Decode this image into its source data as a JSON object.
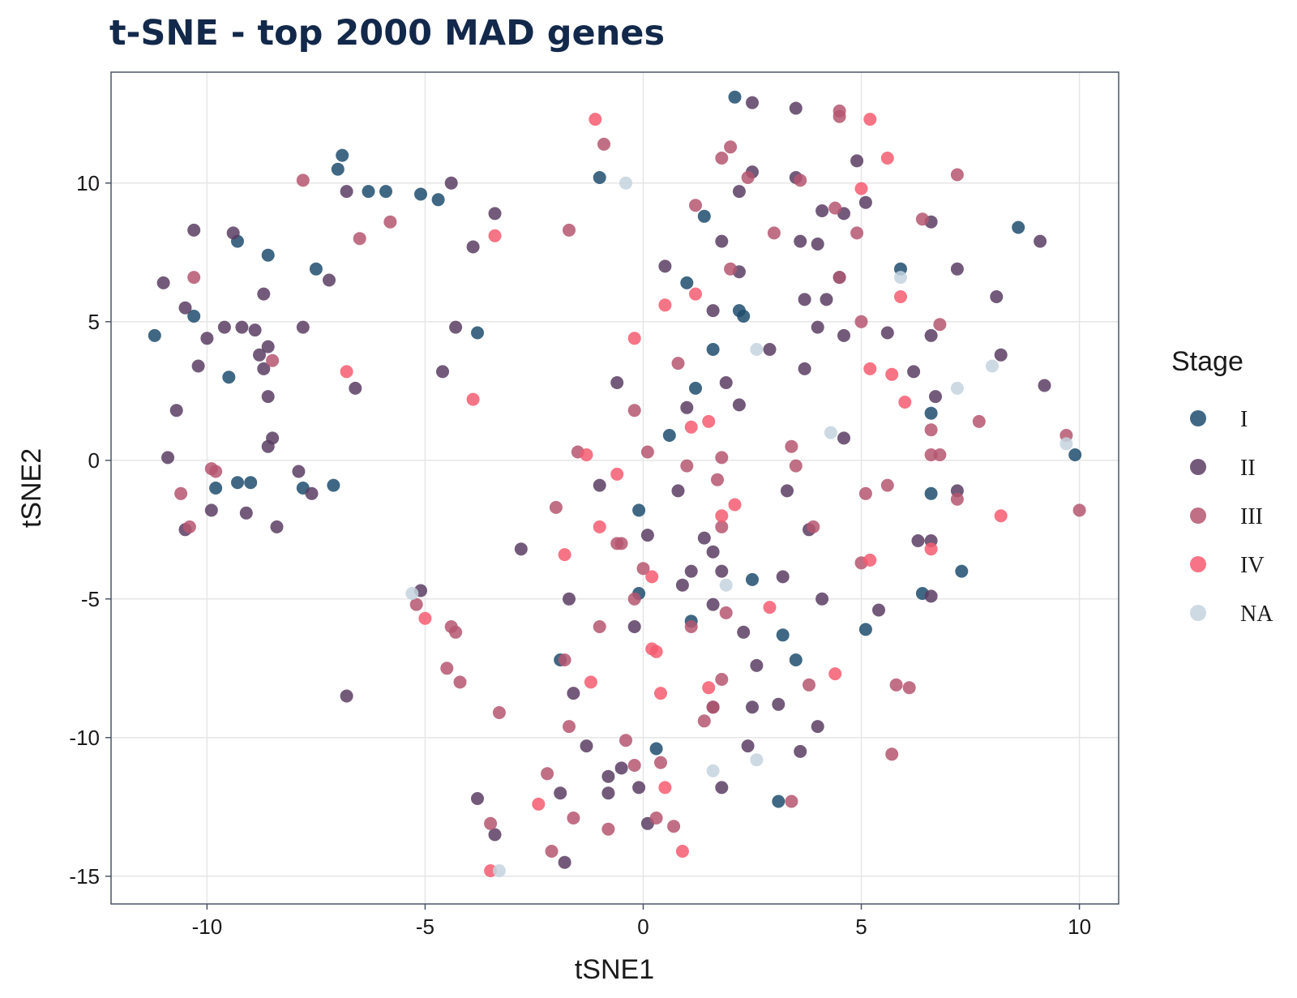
{
  "chart_data": {
    "type": "scatter",
    "title": "t-SNE - top 2000 MAD genes",
    "xlabel": "tSNE1",
    "ylabel": "tSNE2",
    "xlim": [
      -12.2,
      10.9
    ],
    "ylim": [
      -16.0,
      14.0
    ],
    "x_ticks": [
      -10,
      -5,
      0,
      5,
      10
    ],
    "y_ticks": [
      10,
      5,
      0,
      -5,
      -10,
      -15
    ],
    "grid": true,
    "legend": {
      "title": "Stage",
      "position": "right"
    },
    "colors": {
      "I": "#1f4e6e",
      "II": "#5a3d63",
      "III": "#b55670",
      "IV": "#f45c70",
      "NA": "#c4d3df"
    },
    "series": [
      {
        "name": "I",
        "points": [
          [
            -11.2,
            4.5
          ],
          [
            -10.3,
            5.2
          ],
          [
            -9.5,
            3.0
          ],
          [
            -9.3,
            7.9
          ],
          [
            -8.6,
            7.4
          ],
          [
            -7.5,
            6.9
          ],
          [
            -7.0,
            10.5
          ],
          [
            -6.9,
            11.0
          ],
          [
            -6.3,
            9.7
          ],
          [
            -5.9,
            9.7
          ],
          [
            -5.1,
            9.6
          ],
          [
            -4.7,
            9.4
          ],
          [
            -3.8,
            4.6
          ],
          [
            -9.8,
            -1.0
          ],
          [
            -9.3,
            -0.8
          ],
          [
            -9.0,
            -0.8
          ],
          [
            -7.8,
            -1.0
          ],
          [
            -7.1,
            -0.9
          ],
          [
            -1.0,
            10.2
          ],
          [
            1.4,
            8.8
          ],
          [
            2.1,
            13.1
          ],
          [
            1.0,
            6.4
          ],
          [
            2.2,
            5.4
          ],
          [
            2.3,
            5.2
          ],
          [
            1.6,
            4.0
          ],
          [
            1.2,
            2.6
          ],
          [
            0.6,
            0.9
          ],
          [
            -0.1,
            -1.8
          ],
          [
            -0.1,
            -4.8
          ],
          [
            1.1,
            -5.8
          ],
          [
            2.5,
            -4.3
          ],
          [
            3.2,
            -6.3
          ],
          [
            3.5,
            -7.2
          ],
          [
            -1.9,
            -7.2
          ],
          [
            0.3,
            -10.4
          ],
          [
            3.1,
            -12.3
          ],
          [
            4.5,
            6.6
          ],
          [
            5.9,
            6.9
          ],
          [
            6.6,
            1.7
          ],
          [
            6.6,
            -1.2
          ],
          [
            6.4,
            -4.8
          ],
          [
            5.1,
            -6.1
          ],
          [
            7.3,
            -4.0
          ],
          [
            8.6,
            8.4
          ],
          [
            9.9,
            0.2
          ]
        ]
      },
      {
        "name": "II",
        "points": [
          [
            -11.0,
            6.4
          ],
          [
            -10.5,
            5.5
          ],
          [
            -10.3,
            8.3
          ],
          [
            -10.0,
            4.4
          ],
          [
            -10.2,
            3.4
          ],
          [
            -10.7,
            1.8
          ],
          [
            -10.9,
            0.1
          ],
          [
            -9.4,
            8.2
          ],
          [
            -9.6,
            4.8
          ],
          [
            -9.2,
            4.8
          ],
          [
            -8.9,
            4.7
          ],
          [
            -8.8,
            3.8
          ],
          [
            -8.7,
            6.0
          ],
          [
            -8.6,
            4.1
          ],
          [
            -8.7,
            3.3
          ],
          [
            -8.6,
            2.3
          ],
          [
            -8.5,
            0.8
          ],
          [
            -8.6,
            0.5
          ],
          [
            -9.9,
            -1.8
          ],
          [
            -9.1,
            -1.9
          ],
          [
            -8.4,
            -2.4
          ],
          [
            -10.5,
            -2.5
          ],
          [
            -7.9,
            -0.4
          ],
          [
            -7.6,
            -1.2
          ],
          [
            -7.8,
            4.8
          ],
          [
            -7.2,
            6.5
          ],
          [
            -6.8,
            9.7
          ],
          [
            -6.6,
            2.6
          ],
          [
            -4.4,
            10.0
          ],
          [
            -3.4,
            8.9
          ],
          [
            -3.9,
            7.7
          ],
          [
            -4.3,
            4.8
          ],
          [
            -4.6,
            3.2
          ],
          [
            -6.8,
            -8.5
          ],
          [
            -5.1,
            -4.7
          ],
          [
            -2.8,
            -3.2
          ],
          [
            -1.7,
            -5.0
          ],
          [
            -1.6,
            -8.4
          ],
          [
            -1.3,
            -10.3
          ],
          [
            -0.8,
            -11.4
          ],
          [
            -0.5,
            -11.1
          ],
          [
            -0.8,
            -12.0
          ],
          [
            -0.1,
            -11.8
          ],
          [
            0.1,
            -13.1
          ],
          [
            -1.9,
            -12.0
          ],
          [
            -3.8,
            -12.2
          ],
          [
            -3.4,
            -13.5
          ],
          [
            -1.8,
            -14.5
          ],
          [
            -0.6,
            2.8
          ],
          [
            1.0,
            1.9
          ],
          [
            0.1,
            -2.7
          ],
          [
            0.5,
            7.0
          ],
          [
            -0.2,
            -6.0
          ],
          [
            0.9,
            -4.5
          ],
          [
            1.1,
            -4.0
          ],
          [
            1.4,
            -2.8
          ],
          [
            1.6,
            -3.3
          ],
          [
            1.6,
            -5.2
          ],
          [
            1.8,
            -4.0
          ],
          [
            1.8,
            -11.8
          ],
          [
            1.6,
            -8.9
          ],
          [
            1.9,
            2.8
          ],
          [
            2.2,
            2.0
          ],
          [
            2.2,
            6.8
          ],
          [
            1.8,
            7.9
          ],
          [
            1.6,
            5.4
          ],
          [
            2.2,
            9.7
          ],
          [
            2.5,
            10.4
          ],
          [
            2.5,
            12.9
          ],
          [
            2.3,
            -6.2
          ],
          [
            2.4,
            -10.3
          ],
          [
            2.5,
            -8.9
          ],
          [
            2.6,
            -7.4
          ],
          [
            3.2,
            -4.2
          ],
          [
            3.1,
            -8.8
          ],
          [
            3.3,
            -1.1
          ],
          [
            2.9,
            4.0
          ],
          [
            3.5,
            10.2
          ],
          [
            3.6,
            7.9
          ],
          [
            3.7,
            5.8
          ],
          [
            3.7,
            3.3
          ],
          [
            3.5,
            12.7
          ],
          [
            3.8,
            -2.5
          ],
          [
            4.0,
            -9.6
          ],
          [
            4.0,
            4.8
          ],
          [
            4.0,
            7.8
          ],
          [
            4.1,
            9.0
          ],
          [
            4.2,
            5.8
          ],
          [
            4.1,
            -5.0
          ],
          [
            3.6,
            -10.5
          ],
          [
            4.6,
            4.5
          ],
          [
            4.6,
            8.9
          ],
          [
            4.9,
            10.8
          ],
          [
            5.1,
            9.3
          ],
          [
            5.4,
            -5.4
          ],
          [
            5.6,
            4.6
          ],
          [
            6.2,
            3.2
          ],
          [
            6.3,
            -2.9
          ],
          [
            6.6,
            -2.9
          ],
          [
            6.6,
            -4.9
          ],
          [
            6.6,
            4.5
          ],
          [
            6.7,
            2.3
          ],
          [
            6.6,
            8.6
          ],
          [
            7.2,
            6.9
          ],
          [
            7.2,
            -1.1
          ],
          [
            8.1,
            5.9
          ],
          [
            8.2,
            3.8
          ],
          [
            9.1,
            7.9
          ],
          [
            9.2,
            2.7
          ],
          [
            4.6,
            0.8
          ],
          [
            0.8,
            -1.1
          ],
          [
            -1.0,
            -0.9
          ]
        ]
      },
      {
        "name": "III",
        "points": [
          [
            -10.3,
            6.6
          ],
          [
            -8.5,
            3.6
          ],
          [
            -7.8,
            10.1
          ],
          [
            -6.5,
            8.0
          ],
          [
            -5.8,
            8.6
          ],
          [
            -9.8,
            -0.4
          ],
          [
            -9.9,
            -0.3
          ],
          [
            -10.6,
            -1.2
          ],
          [
            -10.4,
            -2.4
          ],
          [
            -5.2,
            -5.2
          ],
          [
            -4.4,
            -6.0
          ],
          [
            -4.3,
            -6.2
          ],
          [
            -4.5,
            -7.5
          ],
          [
            -4.2,
            -8.0
          ],
          [
            -3.3,
            -9.1
          ],
          [
            -3.5,
            -13.1
          ],
          [
            -1.7,
            8.3
          ],
          [
            -0.9,
            11.4
          ],
          [
            -1.5,
            0.3
          ],
          [
            -2.0,
            -1.7
          ],
          [
            -1.8,
            -7.2
          ],
          [
            -1.7,
            -9.6
          ],
          [
            -2.2,
            -11.3
          ],
          [
            -2.1,
            -14.1
          ],
          [
            -1.6,
            -12.9
          ],
          [
            -1.0,
            -6.0
          ],
          [
            -0.6,
            -3.0
          ],
          [
            -0.2,
            -5.0
          ],
          [
            -0.4,
            -10.1
          ],
          [
            -0.2,
            -11.0
          ],
          [
            -0.8,
            -13.3
          ],
          [
            0.0,
            -3.9
          ],
          [
            0.1,
            0.3
          ],
          [
            0.8,
            3.5
          ],
          [
            -0.2,
            1.8
          ],
          [
            0.3,
            -12.9
          ],
          [
            0.4,
            -10.9
          ],
          [
            0.7,
            -13.2
          ],
          [
            1.0,
            -0.2
          ],
          [
            1.1,
            -6.0
          ],
          [
            1.2,
            9.2
          ],
          [
            1.8,
            10.9
          ],
          [
            2.0,
            11.3
          ],
          [
            1.8,
            0.1
          ],
          [
            1.7,
            -0.7
          ],
          [
            1.8,
            -2.4
          ],
          [
            1.9,
            -5.5
          ],
          [
            1.8,
            -7.9
          ],
          [
            1.4,
            -9.4
          ],
          [
            1.6,
            -8.9
          ],
          [
            2.0,
            6.9
          ],
          [
            2.4,
            10.2
          ],
          [
            3.0,
            8.2
          ],
          [
            3.6,
            10.1
          ],
          [
            3.4,
            0.5
          ],
          [
            3.5,
            -0.2
          ],
          [
            3.9,
            -2.4
          ],
          [
            3.8,
            -8.1
          ],
          [
            3.4,
            -12.3
          ],
          [
            4.5,
            12.6
          ],
          [
            4.5,
            12.4
          ],
          [
            4.4,
            9.1
          ],
          [
            4.5,
            6.6
          ],
          [
            5.0,
            5.0
          ],
          [
            4.9,
            8.2
          ],
          [
            5.0,
            -3.7
          ],
          [
            5.1,
            -1.2
          ],
          [
            5.6,
            -0.9
          ],
          [
            5.8,
            -8.1
          ],
          [
            6.1,
            -8.2
          ],
          [
            5.7,
            -10.6
          ],
          [
            6.4,
            8.7
          ],
          [
            6.6,
            1.1
          ],
          [
            6.6,
            0.2
          ],
          [
            6.8,
            0.2
          ],
          [
            6.8,
            4.9
          ],
          [
            7.2,
            10.3
          ],
          [
            7.2,
            -1.4
          ],
          [
            7.7,
            1.4
          ],
          [
            9.7,
            0.9
          ],
          [
            10.0,
            -1.8
          ],
          [
            -0.5,
            -3.0
          ]
        ]
      },
      {
        "name": "IV",
        "points": [
          [
            -6.8,
            3.2
          ],
          [
            -3.9,
            2.2
          ],
          [
            -3.4,
            8.1
          ],
          [
            -5.0,
            -5.7
          ],
          [
            -3.5,
            -14.8
          ],
          [
            -1.1,
            12.3
          ],
          [
            -1.3,
            0.2
          ],
          [
            -1.8,
            -3.4
          ],
          [
            -1.2,
            -8.0
          ],
          [
            -2.4,
            -12.4
          ],
          [
            -0.6,
            -0.5
          ],
          [
            -1.0,
            -2.4
          ],
          [
            -0.2,
            4.4
          ],
          [
            0.5,
            5.6
          ],
          [
            0.2,
            -4.2
          ],
          [
            0.2,
            -6.8
          ],
          [
            0.3,
            -6.9
          ],
          [
            0.4,
            -8.4
          ],
          [
            0.5,
            -11.8
          ],
          [
            0.9,
            -14.1
          ],
          [
            1.2,
            6.0
          ],
          [
            1.1,
            1.2
          ],
          [
            1.5,
            1.4
          ],
          [
            1.8,
            -2.0
          ],
          [
            2.1,
            -1.6
          ],
          [
            1.5,
            -8.2
          ],
          [
            2.9,
            -5.3
          ],
          [
            4.4,
            -7.7
          ],
          [
            5.0,
            9.8
          ],
          [
            5.2,
            12.3
          ],
          [
            5.2,
            3.3
          ],
          [
            5.2,
            -3.6
          ],
          [
            5.6,
            10.9
          ],
          [
            5.7,
            3.1
          ],
          [
            5.9,
            5.9
          ],
          [
            6.0,
            2.1
          ],
          [
            6.6,
            -3.2
          ],
          [
            8.2,
            -2.0
          ]
        ]
      },
      {
        "name": "NA",
        "points": [
          [
            -0.4,
            10.0
          ],
          [
            -5.3,
            -4.8
          ],
          [
            -3.3,
            -14.8
          ],
          [
            1.9,
            -4.5
          ],
          [
            1.6,
            -11.2
          ],
          [
            2.6,
            4.0
          ],
          [
            2.6,
            -10.8
          ],
          [
            4.3,
            1.0
          ],
          [
            5.9,
            6.6
          ],
          [
            7.2,
            2.6
          ],
          [
            8.0,
            3.4
          ],
          [
            9.7,
            0.6
          ]
        ]
      }
    ]
  }
}
